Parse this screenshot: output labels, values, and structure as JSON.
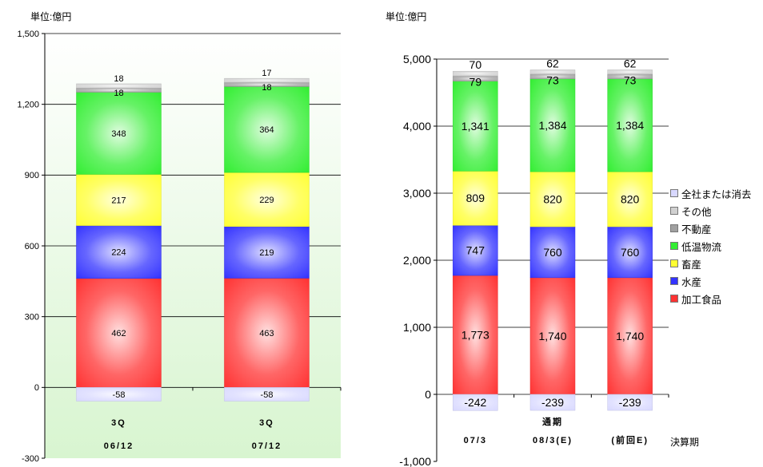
{
  "page": {
    "left_unit": "単位:億円",
    "right_unit": "単位:億円",
    "kessan_label": "決算期"
  },
  "legend": [
    {
      "name": "全社または消去",
      "color": "#d8d8ff"
    },
    {
      "name": "その他",
      "color": "#d0d0d0"
    },
    {
      "name": "不動産",
      "color": "#a0a0a0"
    },
    {
      "name": "低温物流",
      "color": "#33ee33"
    },
    {
      "name": "畜産",
      "color": "#ffff33"
    },
    {
      "name": "水産",
      "color": "#3333ff"
    },
    {
      "name": "加工食品",
      "color": "#ff3333"
    }
  ],
  "chart_data": [
    {
      "type": "bar",
      "stacked": true,
      "categories": [
        "3Q 06/12",
        "3Q 07/12"
      ],
      "category_lines": [
        [
          "3Q",
          "06/12"
        ],
        [
          "3Q",
          "07/12"
        ]
      ],
      "ylim": [
        -300,
        1500
      ],
      "yticks": [
        -300,
        0,
        300,
        600,
        900,
        1200,
        1500
      ],
      "ytick_labels": [
        "-300",
        "0",
        "300",
        "600",
        "900",
        "1,200",
        "1,500"
      ],
      "ylabel": "単位:億円",
      "grid": true,
      "series": [
        {
          "name": "加工食品",
          "color": "#ff3333",
          "values": [
            462,
            463
          ]
        },
        {
          "name": "水産",
          "color": "#3333ff",
          "values": [
            224,
            219
          ]
        },
        {
          "name": "畜産",
          "color": "#ffff33",
          "values": [
            217,
            229
          ]
        },
        {
          "name": "低温物流",
          "color": "#33ee33",
          "values": [
            348,
            364
          ]
        },
        {
          "name": "不動産",
          "color": "#a0a0a0",
          "values": [
            18,
            18
          ]
        },
        {
          "name": "その他",
          "color": "#d0d0d0",
          "values": [
            18,
            17
          ]
        },
        {
          "name": "全社または消去",
          "color": "#d8d8ff",
          "values": [
            -58,
            -58
          ]
        }
      ]
    },
    {
      "type": "bar",
      "stacked": true,
      "categories": [
        "07/3",
        "通期 08/3(E)",
        "(前回E)"
      ],
      "category_lines": [
        [
          "",
          "07/3"
        ],
        [
          "通期",
          "08/3(E)"
        ],
        [
          "",
          "(前回E)"
        ]
      ],
      "ylim": [
        -1000,
        5000
      ],
      "yticks": [
        -1000,
        0,
        1000,
        2000,
        3000,
        4000,
        5000
      ],
      "ytick_labels": [
        "-1,000",
        "0",
        "1,000",
        "2,000",
        "3,000",
        "4,000",
        "5,000"
      ],
      "ylabel": "単位:億円",
      "xlabel": "決算期",
      "grid": true,
      "series": [
        {
          "name": "加工食品",
          "color": "#ff3333",
          "values": [
            1773,
            1740,
            1740
          ]
        },
        {
          "name": "水産",
          "color": "#3333ff",
          "values": [
            747,
            760,
            760
          ]
        },
        {
          "name": "畜産",
          "color": "#ffff33",
          "values": [
            809,
            820,
            820
          ]
        },
        {
          "name": "低温物流",
          "color": "#33ee33",
          "values": [
            1341,
            1384,
            1384
          ]
        },
        {
          "name": "不動産",
          "color": "#a0a0a0",
          "values": [
            79,
            73,
            73
          ]
        },
        {
          "name": "その他",
          "color": "#d0d0d0",
          "values": [
            70,
            62,
            62
          ]
        },
        {
          "name": "全社または消去",
          "color": "#d8d8ff",
          "values": [
            -242,
            -239,
            -239
          ]
        }
      ]
    }
  ]
}
